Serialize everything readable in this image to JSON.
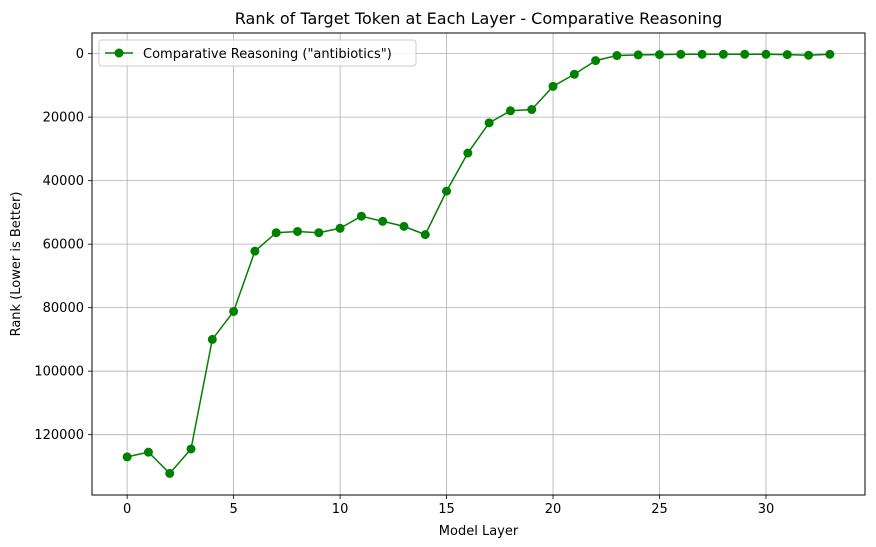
{
  "chart_data": {
    "type": "line",
    "title": "Rank of Target Token at Each Layer - Comparative Reasoning",
    "xlabel": "Model Layer",
    "ylabel": "Rank (Lower is Better)",
    "xlim": [
      -1.65,
      34.65
    ],
    "ylim": [
      139000,
      -6500
    ],
    "y_inverted": true,
    "xticks": [
      0,
      5,
      10,
      15,
      20,
      25,
      30
    ],
    "yticks": [
      0,
      20000,
      40000,
      60000,
      80000,
      100000,
      120000
    ],
    "grid": true,
    "legend_position": "top-left",
    "series": [
      {
        "name": "Comparative Reasoning (\"antibiotics\")",
        "color": "#008000",
        "marker": "circle",
        "x": [
          0,
          1,
          2,
          3,
          4,
          5,
          6,
          7,
          8,
          9,
          10,
          11,
          12,
          13,
          14,
          15,
          16,
          17,
          18,
          19,
          20,
          21,
          22,
          23,
          24,
          25,
          26,
          27,
          28,
          29,
          30,
          31,
          32,
          33
        ],
        "y": [
          127000,
          125500,
          132200,
          124500,
          90000,
          81200,
          62200,
          56400,
          56000,
          56400,
          55000,
          51200,
          52800,
          54400,
          57000,
          43300,
          31300,
          21800,
          18000,
          17600,
          10300,
          6500,
          2200,
          600,
          400,
          300,
          200,
          200,
          200,
          200,
          200,
          300,
          500,
          200
        ]
      }
    ]
  }
}
